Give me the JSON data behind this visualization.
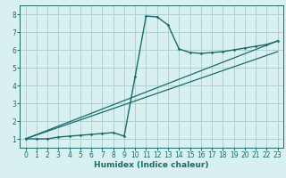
{
  "bg_color": "#d8f0f0",
  "line_color": "#1a6b6b",
  "grid_color": "#b0d0d0",
  "xlabel": "Humidex (Indice chaleur)",
  "xlim": [
    -0.5,
    23.5
  ],
  "ylim": [
    0.5,
    8.5
  ],
  "xticks": [
    0,
    1,
    2,
    3,
    4,
    5,
    6,
    7,
    8,
    9,
    10,
    11,
    12,
    13,
    14,
    15,
    16,
    17,
    18,
    19,
    20,
    21,
    22,
    23
  ],
  "yticks": [
    1,
    2,
    3,
    4,
    5,
    6,
    7,
    8
  ],
  "curve1_x": [
    0,
    1,
    2,
    3,
    4,
    5,
    6,
    7,
    8,
    9,
    10,
    11,
    12,
    13,
    14,
    15,
    16,
    17,
    18,
    19,
    20,
    21,
    22,
    23
  ],
  "curve1_y": [
    1.0,
    1.0,
    1.0,
    1.1,
    1.15,
    1.2,
    1.25,
    1.3,
    1.35,
    1.15,
    4.5,
    7.9,
    7.85,
    7.4,
    6.05,
    5.85,
    5.8,
    5.85,
    5.9,
    6.0,
    6.1,
    6.2,
    6.3,
    6.5
  ],
  "line2_x": [
    0,
    23
  ],
  "line2_y": [
    1.0,
    6.5
  ],
  "line3_x": [
    0,
    23
  ],
  "line3_y": [
    1.0,
    5.9
  ],
  "label_fontsize": 6.5,
  "tick_fontsize": 5.5
}
